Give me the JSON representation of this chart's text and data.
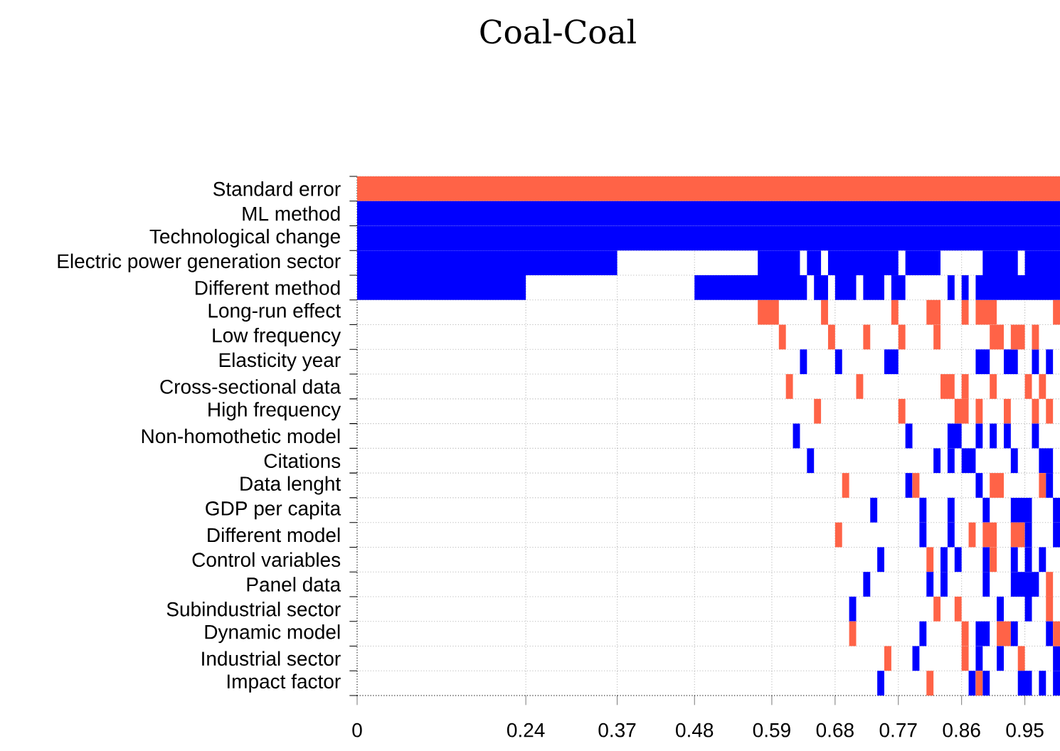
{
  "chart_data": {
    "type": "bar",
    "orientation": "horizontal",
    "title": "Coal-Coal",
    "categories": [
      "Standard error",
      "ML method",
      "Technological change",
      "Electric power generation sector",
      "Different method",
      "Long-run effect",
      "Low frequency",
      "Elasticity year",
      "Cross-sectional data",
      "High frequency",
      "Non-homothetic model",
      "Citations",
      "Data lenght",
      "GDP per capita",
      "Different model",
      "Control variables",
      "Panel data",
      "Subindustrial sector",
      "Dynamic model",
      "Industrial sector",
      "Impact factor"
    ],
    "xlim": [
      0,
      1
    ],
    "xticks": [
      0,
      0.24,
      0.37,
      0.48,
      0.59,
      0.68,
      0.77,
      0.86,
      0.95
    ],
    "grid": true,
    "series": [
      {
        "base": [
          0,
          0,
          0,
          0,
          0,
          0.57,
          0.6,
          0.63,
          0.61,
          0.65,
          0.62,
          0.64,
          0.69,
          0.73,
          0.68,
          0.74,
          0.72,
          0.7,
          0.7,
          0.75,
          0.74
        ],
        "values": [
          1,
          1,
          1,
          0.37,
          0.24,
          0.03,
          0.01,
          0.01,
          0.01,
          0.01,
          0.01,
          0.01,
          0.01,
          0.01,
          0.01,
          0.01,
          0.01,
          0.01,
          0.01,
          0.01,
          0.01
        ],
        "colors": [
          "#ff6347",
          "#0000ff",
          "#0000ff",
          "#0000ff",
          "#0000ff",
          "#ff6347",
          "#ff6347",
          "#0000ff",
          "#ff6347",
          "#ff6347",
          "#0000ff",
          "#0000ff",
          "#ff6347",
          "#0000ff",
          "#ff6347",
          "#0000ff",
          "#0000ff",
          "#0000ff",
          "#ff6347",
          "#ff6347",
          "#0000ff"
        ]
      },
      {
        "base": [
          null,
          null,
          null,
          0.57,
          0.48,
          0.66,
          0.67,
          0.68,
          0.71,
          0.77,
          0.78,
          0.82,
          0.78,
          0.8,
          0.8,
          0.81,
          0.81,
          0.82,
          0.8,
          0.79,
          0.81
        ],
        "values": [
          null,
          null,
          null,
          0.06,
          0.16,
          0.01,
          0.01,
          0.01,
          0.01,
          0.01,
          0.01,
          0.01,
          0.01,
          0.01,
          0.01,
          0.01,
          0.01,
          0.01,
          0.01,
          0.01,
          0.01
        ],
        "colors": [
          null,
          null,
          null,
          "#0000ff",
          "#0000ff",
          "#ff6347",
          "#ff6347",
          "#0000ff",
          "#ff6347",
          "#ff6347",
          "#0000ff",
          "#0000ff",
          "#0000ff",
          "#0000ff",
          "#0000ff",
          "#ff6347",
          "#0000ff",
          "#ff6347",
          "#0000ff",
          "#0000ff",
          "#ff6347"
        ]
      },
      {
        "base": [
          null,
          null,
          null,
          0.64,
          0.65,
          0.76,
          0.72,
          0.75,
          0.83,
          0.85,
          0.84,
          0.84,
          0.79,
          0.84,
          0.84,
          0.83,
          0.83,
          0.85,
          0.86,
          0.86,
          0.87
        ],
        "values": [
          null,
          null,
          null,
          0.02,
          0.02,
          0.01,
          0.01,
          0.02,
          0.02,
          0.02,
          0.02,
          0.01,
          0.01,
          0.01,
          0.01,
          0.01,
          0.01,
          0.01,
          0.01,
          0.01,
          0.01
        ],
        "colors": [
          null,
          null,
          null,
          "#0000ff",
          "#0000ff",
          "#ff6347",
          "#ff6347",
          "#0000ff",
          "#ff6347",
          "#ff6347",
          "#0000ff",
          "#0000ff",
          "#ff6347",
          "#0000ff",
          "#0000ff",
          "#0000ff",
          "#0000ff",
          "#ff6347",
          "#ff6347",
          "#ff6347",
          "#0000ff"
        ]
      },
      {
        "base": [
          null,
          null,
          null,
          0.67,
          0.68,
          0.81,
          0.77,
          0.88,
          0.86,
          0.88,
          0.88,
          0.86,
          0.88,
          0.89,
          0.87,
          0.85,
          0.89,
          0.91,
          0.88,
          0.88,
          0.88
        ],
        "values": [
          null,
          null,
          null,
          0.1,
          0.03,
          0.02,
          0.01,
          0.02,
          0.01,
          0.01,
          0.01,
          0.02,
          0.01,
          0.01,
          0.01,
          0.01,
          0.01,
          0.01,
          0.02,
          0.01,
          0.01
        ],
        "colors": [
          null,
          null,
          null,
          "#0000ff",
          "#0000ff",
          "#ff6347",
          "#ff6347",
          "#0000ff",
          "#ff6347",
          "#ff6347",
          "#0000ff",
          "#0000ff",
          "#0000ff",
          "#0000ff",
          "#ff6347",
          "#0000ff",
          "#0000ff",
          "#0000ff",
          "#0000ff",
          "#0000ff",
          "#ff6347"
        ]
      },
      {
        "base": [
          null,
          null,
          null,
          0.78,
          0.72,
          0.86,
          0.82,
          0.92,
          0.9,
          0.92,
          0.9,
          0.93,
          0.9,
          0.93,
          0.89,
          0.89,
          0.93,
          0.95,
          0.91,
          0.91,
          0.89
        ],
        "values": [
          null,
          null,
          null,
          0.05,
          0.03,
          0.01,
          0.01,
          0.02,
          0.01,
          0.01,
          0.01,
          0.01,
          0.02,
          0.03,
          0.02,
          0.01,
          0.04,
          0.01,
          0.02,
          0.01,
          0.01
        ],
        "colors": [
          null,
          null,
          null,
          "#0000ff",
          "#0000ff",
          "#ff6347",
          "#ff6347",
          "#0000ff",
          "#ff6347",
          "#ff6347",
          "#0000ff",
          "#0000ff",
          "#ff6347",
          "#0000ff",
          "#ff6347",
          "#0000ff",
          "#0000ff",
          "#0000ff",
          "#ff6347",
          "#0000ff",
          "#0000ff"
        ]
      },
      {
        "base": [
          null,
          null,
          null,
          0.89,
          0.76,
          0.88,
          0.9,
          0.96,
          0.95,
          0.96,
          0.92,
          0.97,
          0.97,
          0.99,
          0.93,
          0.9,
          0.98,
          0.98,
          0.93,
          0.94,
          0.94
        ],
        "values": [
          null,
          null,
          null,
          0.05,
          0.02,
          0.03,
          0.02,
          0.01,
          0.01,
          0.01,
          0.01,
          0.02,
          0.01,
          0.01,
          0.02,
          0.01,
          0.01,
          0.01,
          0.01,
          0.01,
          0.02
        ],
        "colors": [
          null,
          null,
          null,
          "#0000ff",
          "#0000ff",
          "#ff6347",
          "#ff6347",
          "#0000ff",
          "#ff6347",
          "#ff6347",
          "#0000ff",
          "#0000ff",
          "#ff6347",
          "#0000ff",
          "#ff6347",
          "#ff6347",
          "#ff6347",
          "#ff6347",
          "#0000ff",
          "#ff6347",
          "#0000ff"
        ]
      },
      {
        "base": [
          null,
          null,
          null,
          0.95,
          0.84,
          0.99,
          0.93,
          0.98,
          0.97,
          0.98,
          0.96,
          null,
          0.98,
          null,
          0.95,
          0.93,
          null,
          null,
          0.98,
          0.99,
          0.97
        ],
        "values": [
          null,
          null,
          null,
          0.05,
          0.01,
          0.01,
          0.02,
          0.01,
          0.01,
          0.01,
          0.01,
          null,
          0.01,
          null,
          0.01,
          0.01,
          null,
          null,
          0.01,
          0.01,
          0.01
        ],
        "colors": [
          null,
          null,
          null,
          "#0000ff",
          "#0000ff",
          "#ff6347",
          "#ff6347",
          "#0000ff",
          "#ff6347",
          "#ff6347",
          "#0000ff",
          null,
          "#0000ff",
          null,
          "#0000ff",
          "#0000ff",
          null,
          null,
          "#0000ff",
          "#0000ff",
          "#0000ff"
        ]
      },
      {
        "base": [
          null,
          null,
          null,
          null,
          0.86,
          null,
          0.96,
          null,
          null,
          null,
          null,
          null,
          null,
          null,
          0.99,
          0.95,
          null,
          null,
          0.99,
          null,
          0.99
        ],
        "values": [
          null,
          null,
          null,
          null,
          0.01,
          null,
          0.01,
          null,
          null,
          null,
          null,
          null,
          null,
          null,
          0.01,
          0.01,
          null,
          null,
          0.01,
          null,
          0.01
        ],
        "colors": [
          null,
          null,
          null,
          null,
          "#0000ff",
          null,
          "#ff6347",
          null,
          null,
          null,
          null,
          null,
          null,
          null,
          "#0000ff",
          "#0000ff",
          null,
          null,
          "#ff6347",
          null,
          "#0000ff"
        ]
      },
      {
        "base": [
          null,
          null,
          null,
          null,
          0.88,
          null,
          null,
          null,
          null,
          null,
          null,
          null,
          null,
          null,
          null,
          0.97,
          null,
          null,
          null,
          null,
          null
        ],
        "values": [
          null,
          null,
          null,
          null,
          0.12,
          null,
          null,
          null,
          null,
          null,
          null,
          null,
          null,
          null,
          null,
          0.01,
          null,
          null,
          null,
          null,
          null
        ],
        "colors": [
          null,
          null,
          null,
          null,
          "#0000ff",
          null,
          null,
          null,
          null,
          null,
          null,
          null,
          null,
          null,
          null,
          "#0000ff",
          null,
          null,
          null,
          null,
          null
        ]
      }
    ]
  }
}
